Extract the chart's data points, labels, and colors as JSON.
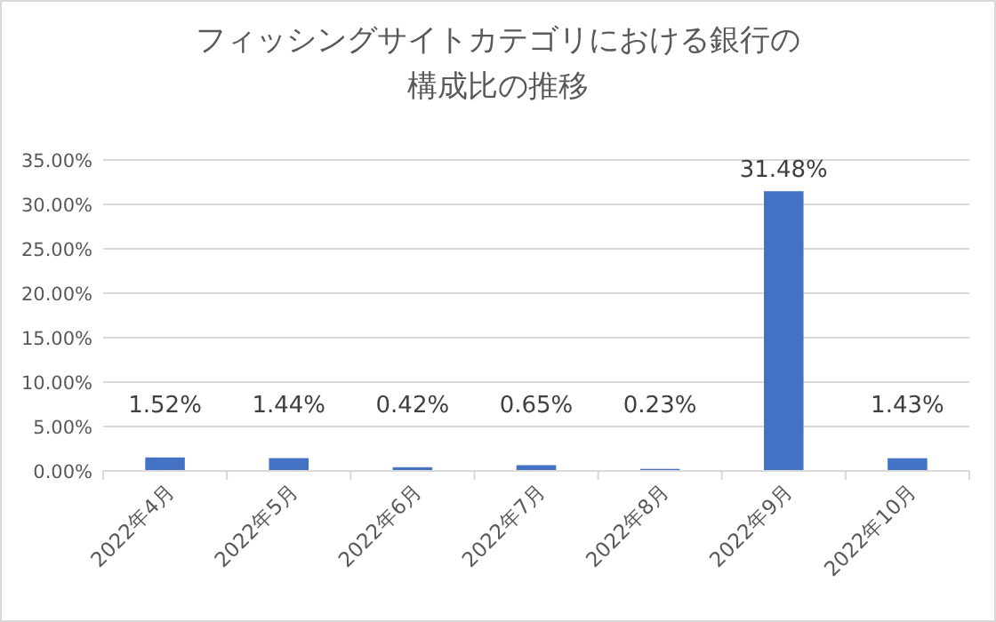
{
  "chart_data": {
    "type": "bar",
    "title": "フィッシングサイトカテゴリにおける銀行の構成比の推移",
    "categories": [
      "2022年4月",
      "2022年5月",
      "2022年6月",
      "2022年7月",
      "2022年8月",
      "2022年9月",
      "2022年10月"
    ],
    "values": [
      1.52,
      1.44,
      0.42,
      0.65,
      0.23,
      31.48,
      1.43
    ],
    "value_labels": [
      "1.52%",
      "1.44%",
      "0.42%",
      "0.65%",
      "0.23%",
      "31.48%",
      "1.43%"
    ],
    "color": "#4472c4",
    "ylim": [
      0,
      35
    ],
    "yticks": [
      {
        "value": 0,
        "label": "0.00%"
      },
      {
        "value": 5,
        "label": "5.00%"
      },
      {
        "value": 10,
        "label": "10.00%"
      },
      {
        "value": 15,
        "label": "15.00%"
      },
      {
        "value": 20,
        "label": "20.00%"
      },
      {
        "value": 25,
        "label": "25.00%"
      },
      {
        "value": 30,
        "label": "30.00%"
      },
      {
        "value": 35,
        "label": "35.00%"
      }
    ],
    "grid": "y"
  }
}
